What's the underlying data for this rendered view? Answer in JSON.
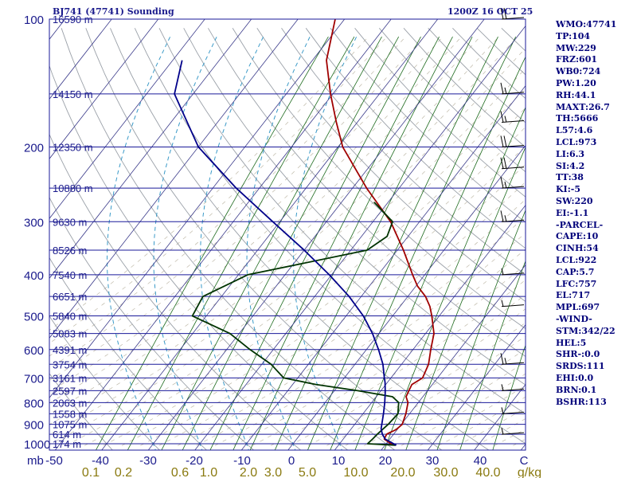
{
  "header": {
    "station": "BJ741 (47741) Sounding",
    "time": "1200Z 16 OCT 25"
  },
  "indices": [
    "WMO:47741",
    "TP:104",
    "MW:229",
    "FRZ:601",
    "WB0:724",
    "PW:1.20",
    "RH:44.1",
    "MAXT:26.7",
    "TH:5666",
    "L57:4.6",
    "LCL:973",
    "LI:6.3",
    "SI:4.2",
    "TT:38",
    "KI:-5",
    "SW:220",
    "EI:-1.1",
    "-PARCEL-",
    "CAPE:10",
    "CINH:54",
    "LCL:922",
    "CAP:5.7",
    "LFC:757",
    "EL:717",
    "MPL:697",
    "-WIND-",
    "STM:342/22",
    "HEL:5",
    "SHR-:0.0",
    "SRDS:111",
    "EHI:0.0",
    "BRN:0.1",
    "BSHR:113"
  ],
  "colors": {
    "isobar": "#1a1a9a",
    "isotherm": "#3a3a8a",
    "dry_adiabat": "#9aa0a8",
    "moist_adiabat": "#8a8060",
    "mixing_ratio": "#1e6b1e",
    "wet_bulb": "#3a9ac8",
    "temperature": "#a00000",
    "dewpoint": "#003300",
    "parcel": "#00008a",
    "axis_text": "#1a1a8c",
    "mix_text": "#8a7a10"
  },
  "chart_data": {
    "type": "line",
    "title": "BJ741 (47741) Sounding",
    "subtitle": "1200Z 16 OCT 25",
    "xlabel": "",
    "ylabel": "mb",
    "x_units": "°C",
    "pressure_axis": [
      "100",
      "200",
      "300",
      "400",
      "500",
      "600",
      "700",
      "800",
      "900",
      "1000"
    ],
    "temperature_axis": [
      "-50",
      "-40",
      "-30",
      "-20",
      "-10",
      "0",
      "10",
      "20",
      "30",
      "40",
      "C"
    ],
    "mixing_ratio_axis": [
      "0.1",
      "0.2",
      "0.6",
      "1.0",
      "2.0",
      "3.0",
      "5.0",
      "10.0",
      "20.0",
      "30.0",
      "40.0",
      "g/kg"
    ],
    "height_levels": [
      {
        "p": 100,
        "label": "16590 m"
      },
      {
        "p": 150,
        "label": "14150 m"
      },
      {
        "p": 200,
        "label": "12350 m"
      },
      {
        "p": 250,
        "label": "10880 m"
      },
      {
        "p": 300,
        "label": "9630 m"
      },
      {
        "p": 350,
        "label": "8526 m"
      },
      {
        "p": 400,
        "label": "7540 m"
      },
      {
        "p": 450,
        "label": "6651 m"
      },
      {
        "p": 500,
        "label": "5840 m"
      },
      {
        "p": 550,
        "label": "5083 m"
      },
      {
        "p": 600,
        "label": "4391 m"
      },
      {
        "p": 650,
        "label": "3754 m"
      },
      {
        "p": 700,
        "label": "3161 m"
      },
      {
        "p": 750,
        "label": "2597 m"
      },
      {
        "p": 800,
        "label": "2063 m"
      },
      {
        "p": 850,
        "label": "1558 m"
      },
      {
        "p": 900,
        "label": "1075 m"
      },
      {
        "p": 950,
        "label": "614 m"
      },
      {
        "p": 1000,
        "label": "174 m"
      }
    ],
    "series": [
      {
        "name": "Temperature",
        "pressure": [
          1008,
          1000,
          975,
          950,
          925,
          900,
          850,
          800,
          775,
          750,
          725,
          700,
          650,
          600,
          550,
          500,
          475,
          450,
          425,
          400,
          350,
          300,
          250,
          200,
          175,
          150,
          125,
          100
        ],
        "temperature": [
          22.4,
          21.0,
          18.8,
          18.5,
          19.8,
          20.2,
          19.2,
          17.8,
          16.4,
          16.0,
          15.6,
          16.8,
          15.8,
          13.8,
          11.8,
          8.4,
          6.4,
          3.8,
          0.3,
          -2.6,
          -8.7,
          -16.2,
          -27.0,
          -39.0,
          -44.5,
          -50.5,
          -57.0,
          -62.0
        ]
      },
      {
        "name": "Dewpoint",
        "pressure": [
          1008,
          1000,
          975,
          950,
          900,
          850,
          800,
          775,
          750,
          725,
          700,
          650,
          600,
          550,
          500,
          450,
          400,
          350,
          325,
          300,
          280,
          270
        ],
        "temperature": [
          22.3,
          16.0,
          16.3,
          16.5,
          17.2,
          17.5,
          15.8,
          13.5,
          5.0,
          -5.0,
          -13.0,
          -18.0,
          -25.0,
          -32.0,
          -43.0,
          -44.0,
          -38.0,
          -16.5,
          -14.5,
          -15.8,
          -20.5,
          -23.0
        ]
      },
      {
        "name": "Parcel",
        "pressure": [
          1008,
          975,
          950,
          922,
          900,
          850,
          800,
          757,
          717,
          700,
          650,
          600,
          550,
          500,
          450,
          400,
          350,
          300,
          250,
          200,
          150,
          125
        ],
        "temperature": [
          22.4,
          19.0,
          17.6,
          16.4,
          15.8,
          14.4,
          12.8,
          11.2,
          9.5,
          8.6,
          6.0,
          2.6,
          -1.4,
          -6.3,
          -12.6,
          -20.5,
          -30.0,
          -41.5,
          -55.0,
          -70.0,
          -84.0,
          -88.0
        ]
      }
    ],
    "wind_barbs": [
      {
        "p": 100,
        "speed_kt": 20
      },
      {
        "p": 150,
        "speed_kt": 15
      },
      {
        "p": 175,
        "speed_kt": 15
      },
      {
        "p": 200,
        "speed_kt": 20
      },
      {
        "p": 225,
        "speed_kt": 20
      },
      {
        "p": 250,
        "speed_kt": 15
      },
      {
        "p": 300,
        "speed_kt": 15
      },
      {
        "p": 400,
        "speed_kt": 5
      },
      {
        "p": 475,
        "speed_kt": 5
      },
      {
        "p": 650,
        "speed_kt": 15
      },
      {
        "p": 750,
        "speed_kt": 5
      },
      {
        "p": 850,
        "speed_kt": 5
      },
      {
        "p": 950,
        "speed_kt": 5
      }
    ]
  }
}
